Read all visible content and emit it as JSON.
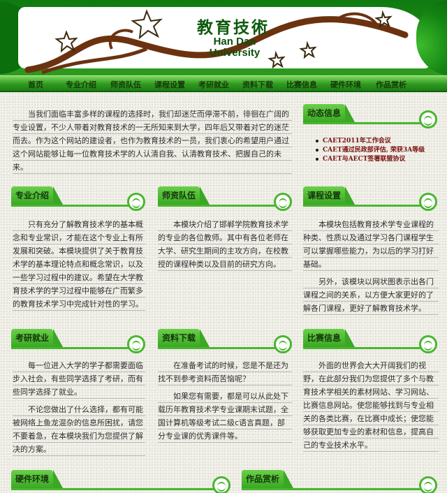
{
  "banner": {
    "title_cn": "教育技術",
    "title_en_line1": "Han Dan",
    "title_en_line2": "University"
  },
  "nav": [
    "首页",
    "专业介绍",
    "师资队伍",
    "课程设置",
    "考研就业",
    "资料下载",
    "比赛信息",
    "硬件环境",
    "作品赏析"
  ],
  "intro": "当我们面临丰富多样的课程的选择时，我们却迷茫而停滞不前，徘徊在广阔的专业设置，不少人带着对教育技术的一无所知来到大学，四年后又带着对它的迷茫而去。作为这个网站的建设者，也作为教育技术的一员，我们衷心的希望用户通过这个网站能够让每一位教育技术学的人认清自我、认清教育技术、把握自己的未来。",
  "news": {
    "title": "动态信息",
    "items": [
      "CAET2011年工作会议",
      "CAET通过民政部评估, 荣获3A等级",
      "CAET与AECT签署联盟协议"
    ]
  },
  "sections": {
    "major": {
      "title": "专业介绍",
      "body": [
        "只有充分了解教育技术学的基本概念和专业常识，才能在这个专业上有所发展和突破。本模块提供了关于教育技术学的基本理论特点和概念常识，以及一些学习过程中的建议。希望在大学教育技术学的学习过程中能够在广而繁多的教育技术学习中完成针对性的学习。"
      ]
    },
    "faculty": {
      "title": "师资队伍",
      "body": [
        "本模块介绍了邯郸学院教育技术学的专业的各位教师。其中有各位老师在大学、研究生期间的主攻方向，在校教授的课程种类以及目前的研究方向。"
      ]
    },
    "courses": {
      "title": "课程设置",
      "body": [
        "本模块包括教育技术学专业课程的种类、性质以及通过学习各门课程学生可以掌握哪些能力，为以后的学习打好基础。",
        "另外，该模块以网状图表示出各门课程之间的关系，以方便大家更好的了解各门课程，更好了解教育技术学。"
      ]
    },
    "grad": {
      "title": "考研就业",
      "body": [
        "每一位进入大学的学子都需要面临步入社会，有些同学选择了考研，而有些同学选择了就业。",
        "不论您做出了什么选择，都有可能被网络上鱼龙混杂的信息所困扰，请您不要着急，在本模块我们为您提供了解决的方案。"
      ]
    },
    "download": {
      "title": "资料下载",
      "body": [
        "在准备考试的时候，您是不是还为找不到参考资料而苦恼呢？",
        "如果您有需要，都是可以从此处下载历年教育技术学专业课期末试题，全国计算机等级考试二级c语言真题，部分专业课的优秀课件等。"
      ]
    },
    "contest": {
      "title": "比赛信息",
      "body": [
        "外面的世界会大大开阔我们的视野，在此部分我们为您提供了多个与教育技术学相关的素材网站、学习网站、比赛信息网站。使您能够找到与专业相关的各类比赛，在比赛中成长；使您能够获取更加专业的素材和信息，提高自己的专业技术水平。"
      ]
    },
    "hardware": {
      "title": "硬件环境"
    },
    "works": {
      "title": "作品赏析"
    }
  },
  "colors": {
    "primary": "#3aa824",
    "dark": "#0f7a0f",
    "news_text": "#7a1010"
  }
}
